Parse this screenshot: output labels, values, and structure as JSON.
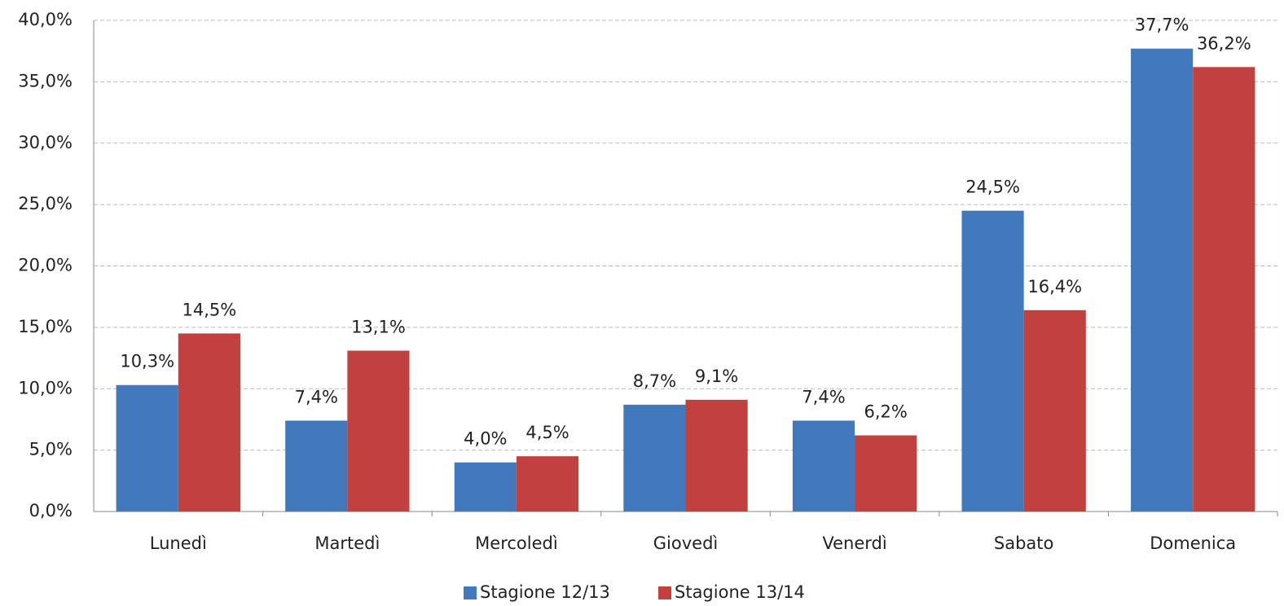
{
  "chart_data": {
    "type": "bar",
    "categories": [
      "Lunedì",
      "Martedì",
      "Mercoledì",
      "Giovedì",
      "Venerdì",
      "Sabato",
      "Domenica"
    ],
    "series": [
      {
        "name": "Stagione 12/13",
        "color": "#4279bd",
        "values": [
          10.3,
          7.4,
          4.0,
          8.7,
          7.4,
          24.5,
          37.7
        ],
        "value_labels": [
          "10,3%",
          "7,4%",
          "4,0%",
          "8,7%",
          "7,4%",
          "24,5%",
          "37,7%"
        ]
      },
      {
        "name": "Stagione 13/14",
        "color": "#c0413f",
        "values": [
          14.5,
          13.1,
          4.5,
          9.1,
          6.2,
          16.4,
          36.2
        ],
        "value_labels": [
          "14,5%",
          "13,1%",
          "4,5%",
          "9,1%",
          "6,2%",
          "16,4%",
          "36,2%"
        ]
      }
    ],
    "ylim": [
      0,
      40
    ],
    "yticks": [
      {
        "value": 0,
        "label": "0,0%"
      },
      {
        "value": 5,
        "label": "5,0%"
      },
      {
        "value": 10,
        "label": "10,0%"
      },
      {
        "value": 15,
        "label": "15,0%"
      },
      {
        "value": 20,
        "label": "20,0%"
      },
      {
        "value": 25,
        "label": "25,0%"
      },
      {
        "value": 30,
        "label": "30,0%"
      },
      {
        "value": 35,
        "label": "35,0%"
      },
      {
        "value": 40,
        "label": "40,0%"
      }
    ],
    "grid": true,
    "legend": "bottom"
  }
}
